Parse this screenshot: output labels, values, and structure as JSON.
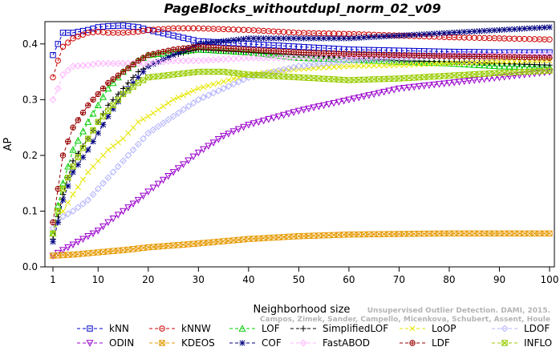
{
  "chart_data": {
    "type": "line",
    "title": "PageBlocks_withoutdupl_norm_02_v09",
    "xlabel": "Neighborhood size",
    "ylabel": "AP",
    "xlim": [
      1,
      100
    ],
    "ylim": [
      0,
      0.44
    ],
    "xticks": [
      1,
      10,
      20,
      30,
      40,
      50,
      60,
      70,
      80,
      90,
      100
    ],
    "yticks": [
      0.0,
      0.1,
      0.2,
      0.3,
      0.4
    ],
    "grid": false,
    "legend_position": "bottom",
    "watermark": [
      "Unsupervised Outlier Detection. DAMI, 2015.",
      "Campos, Zimek, Sander, Campello, Micenkova, Schubert, Assent, Houle"
    ],
    "series": [
      {
        "name": "kNN",
        "color": "#0000cc",
        "marker": "square",
        "x": [
          1,
          2,
          3,
          5,
          8,
          10,
          12,
          15,
          18,
          20,
          25,
          30,
          40,
          50,
          60,
          70,
          80,
          90,
          100
        ],
        "y": [
          0.38,
          0.4,
          0.42,
          0.42,
          0.425,
          0.43,
          0.432,
          0.433,
          0.43,
          0.425,
          0.415,
          0.405,
          0.4,
          0.395,
          0.39,
          0.388,
          0.386,
          0.385,
          0.385
        ]
      },
      {
        "name": "kNNW",
        "color": "#cc0000",
        "marker": "circle",
        "x": [
          1,
          2,
          3,
          5,
          8,
          10,
          12,
          15,
          18,
          20,
          25,
          30,
          40,
          50,
          60,
          70,
          80,
          90,
          100
        ],
        "y": [
          0.34,
          0.37,
          0.395,
          0.41,
          0.42,
          0.422,
          0.42,
          0.42,
          0.422,
          0.425,
          0.428,
          0.428,
          0.425,
          0.42,
          0.418,
          0.415,
          0.412,
          0.41,
          0.408
        ]
      },
      {
        "name": "LOF",
        "color": "#00cc00",
        "marker": "triangle",
        "x": [
          1,
          2,
          3,
          5,
          8,
          10,
          12,
          15,
          18,
          20,
          25,
          30,
          40,
          50,
          60,
          70,
          80,
          90,
          100
        ],
        "y": [
          0.06,
          0.11,
          0.15,
          0.21,
          0.26,
          0.29,
          0.32,
          0.35,
          0.37,
          0.38,
          0.385,
          0.39,
          0.385,
          0.375,
          0.372,
          0.368,
          0.365,
          0.36,
          0.358
        ]
      },
      {
        "name": "SimplifiedLOF",
        "color": "#000000",
        "marker": "plus",
        "x": [
          1,
          2,
          3,
          5,
          8,
          10,
          12,
          15,
          18,
          20,
          25,
          30,
          40,
          50,
          60,
          70,
          80,
          90,
          100
        ],
        "y": [
          0.05,
          0.09,
          0.13,
          0.19,
          0.23,
          0.26,
          0.29,
          0.32,
          0.35,
          0.36,
          0.38,
          0.39,
          0.385,
          0.38,
          0.375,
          0.37,
          0.368,
          0.365,
          0.362
        ]
      },
      {
        "name": "LoOP",
        "color": "#e6e600",
        "marker": "x",
        "x": [
          1,
          2,
          3,
          5,
          8,
          10,
          12,
          15,
          18,
          20,
          25,
          30,
          40,
          50,
          60,
          70,
          80,
          90,
          100
        ],
        "y": [
          0.06,
          0.08,
          0.1,
          0.13,
          0.17,
          0.19,
          0.21,
          0.23,
          0.26,
          0.27,
          0.3,
          0.32,
          0.345,
          0.355,
          0.36,
          0.362,
          0.365,
          0.368,
          0.37
        ]
      },
      {
        "name": "LDOF",
        "color": "#b3b3ff",
        "marker": "diamond",
        "x": [
          1,
          2,
          3,
          5,
          8,
          10,
          12,
          15,
          18,
          20,
          25,
          30,
          40,
          50,
          60,
          70,
          80,
          90,
          100
        ],
        "y": [
          0.07,
          0.08,
          0.09,
          0.1,
          0.12,
          0.14,
          0.16,
          0.19,
          0.22,
          0.24,
          0.27,
          0.3,
          0.34,
          0.36,
          0.37,
          0.375,
          0.378,
          0.38,
          0.382
        ]
      },
      {
        "name": "ODIN",
        "color": "#9900cc",
        "marker": "triangle-down",
        "x": [
          1,
          2,
          3,
          5,
          8,
          10,
          12,
          15,
          18,
          20,
          25,
          30,
          35,
          40,
          50,
          60,
          70,
          80,
          90,
          100
        ],
        "y": [
          0.02,
          0.025,
          0.03,
          0.04,
          0.055,
          0.065,
          0.08,
          0.1,
          0.12,
          0.135,
          0.17,
          0.205,
          0.235,
          0.255,
          0.28,
          0.3,
          0.32,
          0.33,
          0.34,
          0.35
        ]
      },
      {
        "name": "KDEOS",
        "color": "#e69900",
        "marker": "square-x",
        "x": [
          1,
          5,
          10,
          15,
          20,
          30,
          40,
          50,
          60,
          70,
          80,
          90,
          100
        ],
        "y": [
          0.02,
          0.022,
          0.026,
          0.03,
          0.035,
          0.042,
          0.05,
          0.055,
          0.058,
          0.059,
          0.06,
          0.06,
          0.06
        ]
      },
      {
        "name": "COF",
        "color": "#000080",
        "marker": "asterisk",
        "x": [
          1,
          2,
          3,
          5,
          8,
          10,
          12,
          15,
          18,
          20,
          25,
          30,
          40,
          50,
          60,
          70,
          80,
          90,
          100
        ],
        "y": [
          0.045,
          0.08,
          0.12,
          0.17,
          0.21,
          0.24,
          0.27,
          0.31,
          0.34,
          0.36,
          0.38,
          0.4,
          0.41,
          0.41,
          0.41,
          0.415,
          0.42,
          0.425,
          0.43
        ]
      },
      {
        "name": "FastABOD",
        "color": "#ffb3ff",
        "marker": "diamond",
        "x": [
          1,
          2,
          3,
          5,
          8,
          10,
          15,
          20,
          25,
          30,
          40,
          50,
          60,
          70,
          80,
          90,
          100
        ],
        "y": [
          0.3,
          0.32,
          0.345,
          0.36,
          0.362,
          0.365,
          0.365,
          0.365,
          0.37,
          0.37,
          0.375,
          0.375,
          0.376,
          0.378,
          0.38,
          0.38,
          0.38
        ]
      },
      {
        "name": "LDF",
        "color": "#990000",
        "marker": "circle-plus",
        "x": [
          1,
          2,
          3,
          5,
          8,
          10,
          12,
          15,
          18,
          20,
          25,
          30,
          40,
          50,
          60,
          70,
          80,
          90,
          100
        ],
        "y": [
          0.08,
          0.14,
          0.2,
          0.25,
          0.29,
          0.31,
          0.33,
          0.35,
          0.37,
          0.38,
          0.39,
          0.395,
          0.39,
          0.385,
          0.382,
          0.38,
          0.378,
          0.377,
          0.375
        ]
      },
      {
        "name": "INFLO",
        "color": "#99cc00",
        "marker": "hourglass",
        "x": [
          1,
          2,
          3,
          5,
          8,
          10,
          12,
          15,
          18,
          20,
          25,
          30,
          35,
          40,
          50,
          60,
          70,
          80,
          90,
          100
        ],
        "y": [
          0.06,
          0.1,
          0.14,
          0.18,
          0.23,
          0.26,
          0.28,
          0.31,
          0.33,
          0.34,
          0.345,
          0.35,
          0.35,
          0.345,
          0.34,
          0.335,
          0.338,
          0.343,
          0.348,
          0.352
        ]
      }
    ]
  }
}
